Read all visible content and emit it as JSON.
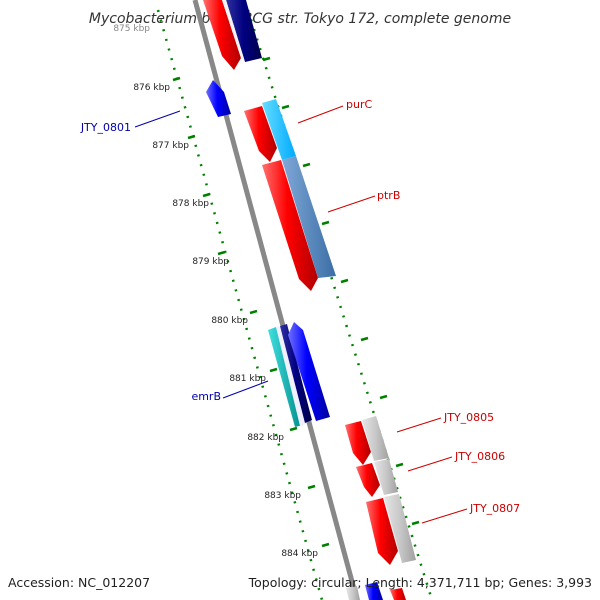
{
  "header": {
    "title": "Mycobacterium bovis BCG str. Tokyo 172, complete genome"
  },
  "footer": {
    "accession": "Accession: NC_012207",
    "summary": "Topology: circular; Length: 4,371,711 bp; Genes: 3,993"
  },
  "scale": {
    "ticks": [
      "875 kbp",
      "876 kbp",
      "877 kbp",
      "878 kbp",
      "879 kbp",
      "880 kbp",
      "881 kbp",
      "882 kbp",
      "883 kbp",
      "884 kbp"
    ]
  },
  "genes": {
    "labels": [
      {
        "name": "purC",
        "strand": "forward"
      },
      {
        "name": "ptrB",
        "strand": "forward"
      },
      {
        "name": "JTY_0801",
        "strand": "reverse"
      },
      {
        "name": "emrB",
        "strand": "reverse"
      },
      {
        "name": "JTY_0805",
        "strand": "forward"
      },
      {
        "name": "JTY_0806",
        "strand": "forward"
      },
      {
        "name": "JTY_0807",
        "strand": "forward"
      }
    ]
  },
  "colors": {
    "forward_gene": "#ff0000",
    "reverse_gene": "#0000ff",
    "backbone": "#888888",
    "tick": "#008000",
    "label_forward": "#cc0000",
    "label_reverse": "#0000aa"
  }
}
